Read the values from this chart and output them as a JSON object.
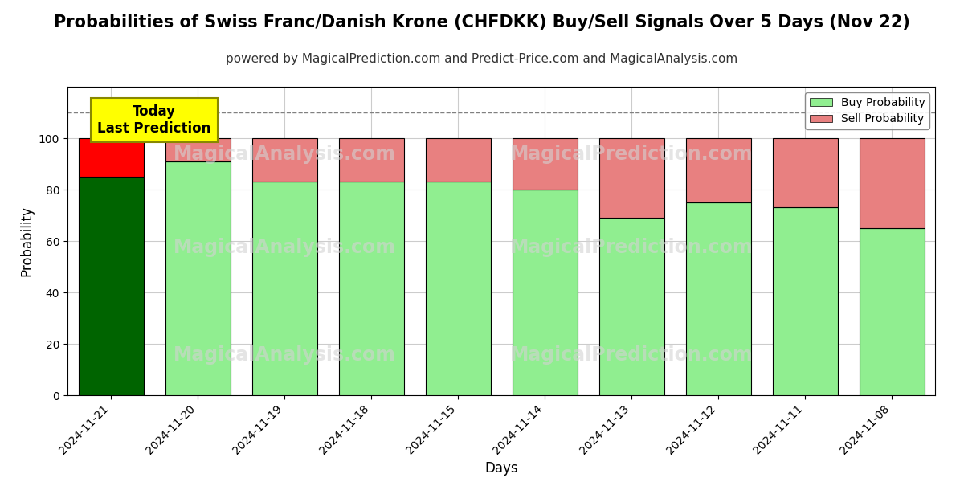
{
  "title": "Probabilities of Swiss Franc/Danish Krone (CHFDKK) Buy/Sell Signals Over 5 Days (Nov 22)",
  "subtitle": "powered by MagicalPrediction.com and Predict-Price.com and MagicalAnalysis.com",
  "xlabel": "Days",
  "ylabel": "Probability",
  "categories": [
    "2024-11-21",
    "2024-11-20",
    "2024-11-19",
    "2024-11-18",
    "2024-11-15",
    "2024-11-14",
    "2024-11-13",
    "2024-11-12",
    "2024-11-11",
    "2024-11-08"
  ],
  "buy_values": [
    85,
    91,
    83,
    83,
    83,
    80,
    69,
    75,
    73,
    65
  ],
  "sell_values": [
    15,
    9,
    17,
    17,
    17,
    20,
    31,
    25,
    27,
    35
  ],
  "today_bar_index": 0,
  "today_buy_color": "#006400",
  "today_sell_color": "#FF0000",
  "normal_buy_color": "#90EE90",
  "normal_sell_color": "#E88080",
  "bar_edge_color": "#000000",
  "dashed_line_y": 110,
  "ylim": [
    0,
    120
  ],
  "yticks": [
    0,
    20,
    40,
    60,
    80,
    100
  ],
  "legend_buy_color": "#90EE90",
  "legend_sell_color": "#E88080",
  "watermark_color": "lightgray",
  "grid_color": "#cccccc",
  "background_color": "#ffffff",
  "annotation_box_color": "#FFFF00",
  "annotation_text": "Today\nLast Prediction",
  "annotation_fontsize": 12,
  "title_fontsize": 15,
  "subtitle_fontsize": 11,
  "axis_label_fontsize": 12,
  "tick_fontsize": 10,
  "bar_width": 0.75
}
